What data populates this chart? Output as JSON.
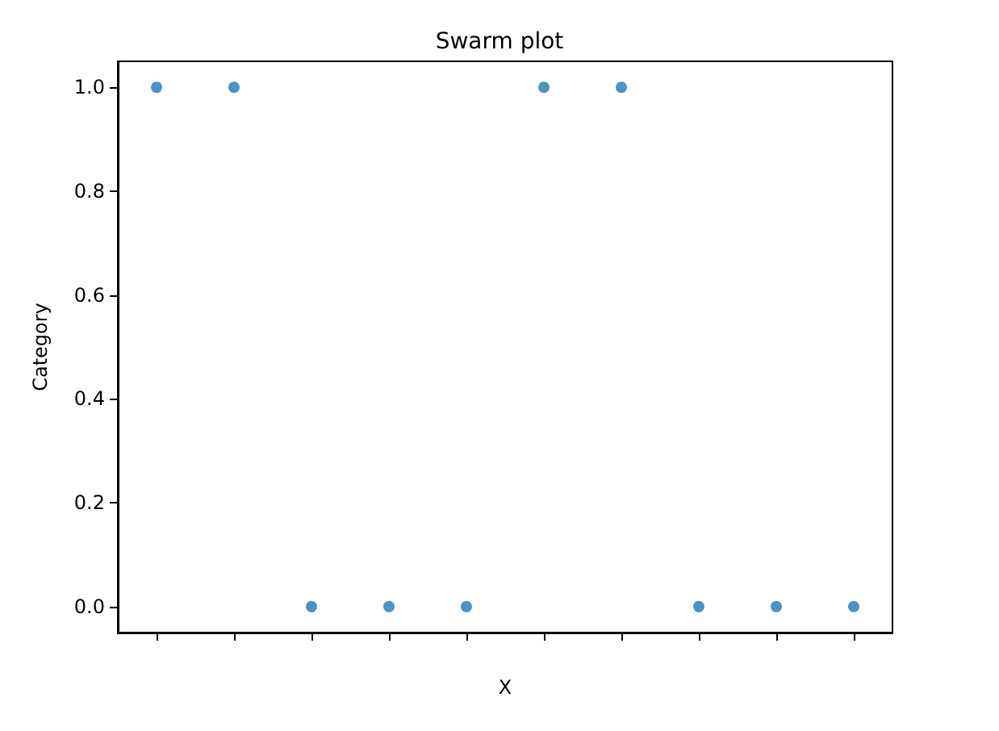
{
  "chart_data": {
    "type": "scatter",
    "title": "Swarm plot",
    "xlabel": "X",
    "ylabel": "Category",
    "categories": [
      null,
      null,
      null,
      null,
      null,
      null,
      null,
      null,
      null,
      null
    ],
    "values": [
      1,
      1,
      0,
      0,
      0,
      1,
      1,
      0,
      0,
      0
    ],
    "color": "#1f77b4",
    "ylim": [
      -0.05,
      1.05
    ],
    "yticks": [
      {
        "value": 0,
        "label": "0.0"
      },
      {
        "value": 0.2,
        "label": "0.2"
      },
      {
        "value": 0.4,
        "label": "0.4"
      },
      {
        "value": 0.6,
        "label": "0.6"
      },
      {
        "value": 0.8,
        "label": "0.8"
      },
      {
        "value": 1,
        "label": "1.0"
      }
    ],
    "marker": "circle"
  }
}
